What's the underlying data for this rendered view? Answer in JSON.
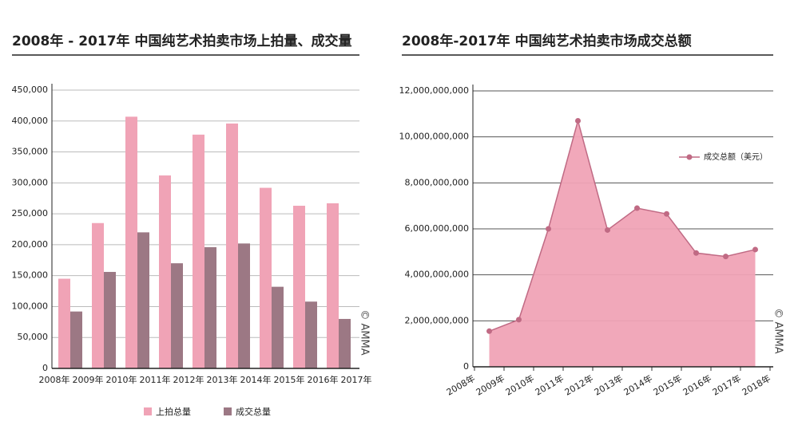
{
  "chart_data": [
    {
      "type": "bar",
      "title": "2008年 - 2017年 中国纯艺术拍卖市场上拍量、成交量",
      "categories": [
        "2008年",
        "2009年",
        "2010年",
        "2011年",
        "2012年",
        "2013年",
        "2014年",
        "2015年",
        "2016年",
        "2017年"
      ],
      "series": [
        {
          "name": "上拍总量",
          "color": "#f0a3b6",
          "values": [
            145000,
            235000,
            407000,
            312000,
            378000,
            396000,
            292000,
            263000,
            267000,
            null
          ]
        },
        {
          "name": "成交总量",
          "color": "#9c7884",
          "values": [
            92000,
            156000,
            220000,
            170000,
            196000,
            202000,
            132000,
            108000,
            80000,
            null
          ]
        }
      ],
      "ylim": [
        0,
        450000
      ],
      "yticks": [
        0,
        {
          "value": 50000,
          "label": "50,000"
        },
        {
          "value": 100000,
          "label": "100,000"
        },
        {
          "value": 150000,
          "label": "150,000"
        },
        {
          "value": 200000,
          "label": "200,000"
        },
        {
          "value": 250000,
          "label": "250,000"
        },
        {
          "value": 300000,
          "label": "300,000"
        },
        {
          "value": 350000,
          "label": "350,000"
        },
        {
          "value": 400000,
          "label": "400,000"
        },
        {
          "value": 450000,
          "label": "450,000"
        }
      ],
      "grid": true,
      "legend": "bottom",
      "annotation": "© AMMA"
    },
    {
      "type": "area",
      "title": "2008年-2017年 中国纯艺术拍卖市场成交总额",
      "categories": [
        "2008年",
        "2009年",
        "2010年",
        "2011年",
        "2012年",
        "2013年",
        "2014年",
        "2015年",
        "2016年",
        "2017年",
        "2018年"
      ],
      "series": [
        {
          "name": "成交总额（美元）",
          "color": "#f0a3b6",
          "line_color": "#c06a84",
          "values": [
            1550000000,
            2050000000,
            6000000000,
            10700000000,
            5950000000,
            6900000000,
            6650000000,
            4950000000,
            4800000000,
            5100000000,
            null
          ]
        }
      ],
      "ylim": [
        0,
        12000000000
      ],
      "yticks": [
        0,
        {
          "value": 2000000000,
          "label": "2,000,000,000"
        },
        {
          "value": 4000000000,
          "label": "4,000,000,000"
        },
        {
          "value": 6000000000,
          "label": "6,000,000,000"
        },
        {
          "value": 8000000000,
          "label": "8,000,000,000"
        },
        {
          "value": 10000000000,
          "label": "10,000,000,000"
        },
        {
          "value": 12000000000,
          "label": "12,000,000,000"
        }
      ],
      "grid": true,
      "legend": "top-right",
      "annotation": "© AMMA"
    }
  ]
}
